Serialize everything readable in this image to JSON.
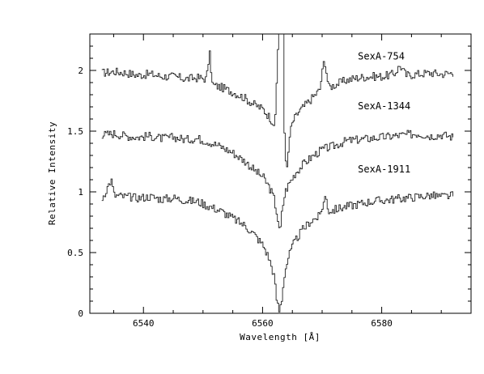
{
  "chart_data": {
    "type": "line",
    "title": "",
    "xlabel": "Wavelength [Å]",
    "ylabel": "Relative Intensity",
    "xlim": [
      6531,
      6595
    ],
    "ylim": [
      0,
      2.3
    ],
    "x_ticks": [
      6540,
      6560,
      6580
    ],
    "y_ticks": [
      0,
      0.5,
      1,
      1.5,
      2
    ],
    "y_tick_labels": [
      "0",
      "0.5",
      "1",
      "1.5",
      "2"
    ],
    "grid": false,
    "series": [
      {
        "name": "SexA-754",
        "x": [
          6533,
          6535,
          6537,
          6539,
          6541,
          6543,
          6545,
          6547,
          6549,
          6550.5,
          6551,
          6551.5,
          6553,
          6555,
          6557,
          6558.5,
          6560,
          6561,
          6562,
          6562.8,
          6563.3,
          6563.6,
          6564.0,
          6564.5,
          6565,
          6566,
          6568,
          6569.5,
          6570.3,
          6571,
          6572,
          6574,
          6576,
          6578,
          6580,
          6582,
          6583,
          6584,
          6586,
          6588,
          6590,
          6592
        ],
        "y": [
          1.98,
          1.99,
          1.98,
          1.96,
          1.97,
          1.95,
          1.95,
          1.93,
          1.94,
          1.93,
          2.15,
          1.88,
          1.86,
          1.82,
          1.77,
          1.72,
          1.68,
          1.62,
          1.55,
          2.6,
          2.8,
          1.4,
          1.17,
          1.48,
          1.58,
          1.66,
          1.76,
          1.84,
          2.1,
          1.86,
          1.88,
          1.92,
          1.94,
          1.95,
          1.95,
          1.97,
          2.04,
          1.96,
          1.97,
          1.98,
          1.97,
          1.98
        ]
      },
      {
        "name": "SexA-1344",
        "x": [
          6533,
          6535,
          6537,
          6539,
          6541,
          6543,
          6545,
          6547,
          6549,
          6551,
          6553,
          6555,
          6557,
          6558.5,
          6560,
          6561,
          6561.8,
          6562.4,
          6562.8,
          6563.2,
          6563.7,
          6564.5,
          6565.5,
          6567,
          6568.5,
          6570,
          6572,
          6574,
          6576,
          6578,
          6580,
          6582,
          6584,
          6586,
          6588,
          6590,
          6592
        ],
        "y": [
          1.47,
          1.48,
          1.46,
          1.45,
          1.46,
          1.44,
          1.45,
          1.43,
          1.44,
          1.41,
          1.37,
          1.32,
          1.25,
          1.18,
          1.12,
          1.04,
          0.95,
          0.8,
          0.64,
          0.85,
          1.0,
          1.08,
          1.16,
          1.24,
          1.3,
          1.35,
          1.38,
          1.42,
          1.43,
          1.44,
          1.45,
          1.46,
          1.47,
          1.48,
          1.46,
          1.47,
          1.45
        ]
      },
      {
        "name": "SexA-1911",
        "x": [
          6533,
          6534.5,
          6535,
          6537,
          6539,
          6541,
          6543,
          6545,
          6547,
          6549,
          6551,
          6553,
          6555,
          6557,
          6558.5,
          6560,
          6561,
          6561.8,
          6562.3,
          6562.7,
          6563.1,
          6563.6,
          6564.3,
          6565.2,
          6566.5,
          6568,
          6569.5,
          6570.5,
          6571,
          6572.5,
          6574,
          6576,
          6578,
          6580,
          6582,
          6584,
          6586,
          6588,
          6590,
          6592
        ],
        "y": [
          0.95,
          1.1,
          0.97,
          0.96,
          0.95,
          0.96,
          0.94,
          0.95,
          0.93,
          0.92,
          0.88,
          0.84,
          0.78,
          0.72,
          0.65,
          0.56,
          0.45,
          0.32,
          0.1,
          0.02,
          0.1,
          0.33,
          0.47,
          0.58,
          0.68,
          0.76,
          0.8,
          0.97,
          0.84,
          0.86,
          0.88,
          0.9,
          0.92,
          0.93,
          0.94,
          0.95,
          0.96,
          0.97,
          0.96,
          0.97
        ]
      }
    ]
  }
}
